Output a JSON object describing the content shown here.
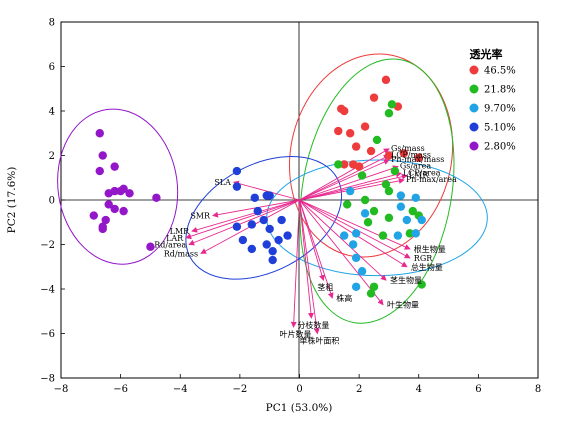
{
  "chart_data": {
    "type": "scatter",
    "subtype": "pca-biplot",
    "xlabel": "PC1 (53.0%)",
    "ylabel": "PC2 (17.6%)",
    "xlim": [
      -8,
      8
    ],
    "ylim": [
      -8,
      8
    ],
    "xticks": [
      "−8",
      "−6",
      "−4",
      "−2",
      "0",
      "2",
      "4",
      "6",
      "8"
    ],
    "yticks": [
      "−8",
      "−6",
      "−4",
      "−2",
      "0",
      "2",
      "4",
      "6",
      "8"
    ],
    "grid": false,
    "zero_lines": true,
    "legend": {
      "title": "透光率",
      "placement": "top-right"
    },
    "series": [
      {
        "name": "46.5%",
        "color": "#ee3b3b",
        "ellipse": {
          "cx": 2.4,
          "cy": 2.0,
          "rx": 2.7,
          "ry": 4.6,
          "angle": 12
        },
        "points": [
          [
            2.9,
            5.4
          ],
          [
            2.5,
            4.6
          ],
          [
            1.4,
            4.1
          ],
          [
            1.5,
            4.0
          ],
          [
            3.3,
            4.2
          ],
          [
            1.3,
            3.1
          ],
          [
            1.7,
            3.0
          ],
          [
            2.2,
            3.3
          ],
          [
            2.4,
            2.2
          ],
          [
            1.9,
            2.4
          ],
          [
            1.5,
            1.6
          ],
          [
            1.8,
            1.6
          ],
          [
            2.0,
            1.5
          ],
          [
            3.5,
            2.1
          ],
          [
            3.0,
            2.0
          ],
          [
            4.0,
            1.9
          ]
        ]
      },
      {
        "name": "21.8%",
        "color": "#22bb22",
        "ellipse": {
          "cx": 2.6,
          "cy": 0.4,
          "rx": 2.5,
          "ry": 6.0,
          "angle": 10
        },
        "points": [
          [
            3.1,
            4.3
          ],
          [
            3.0,
            3.9
          ],
          [
            2.6,
            2.7
          ],
          [
            1.3,
            1.6
          ],
          [
            2.1,
            1.1
          ],
          [
            3.2,
            1.3
          ],
          [
            2.9,
            0.7
          ],
          [
            3.0,
            0.4
          ],
          [
            2.2,
            0.0
          ],
          [
            1.6,
            -0.2
          ],
          [
            2.5,
            -0.5
          ],
          [
            3.0,
            -0.8
          ],
          [
            3.8,
            -0.5
          ],
          [
            4.0,
            -0.7
          ],
          [
            2.3,
            -1.0
          ],
          [
            2.8,
            -1.6
          ],
          [
            3.7,
            -1.5
          ],
          [
            2.5,
            -3.9
          ],
          [
            4.1,
            -3.8
          ],
          [
            2.4,
            -4.2
          ]
        ]
      },
      {
        "name": "9.70%",
        "color": "#20a4e6",
        "ellipse": {
          "cx": 2.6,
          "cy": -0.8,
          "rx": 3.7,
          "ry": 2.6,
          "angle": 0
        },
        "points": [
          [
            1.7,
            0.4
          ],
          [
            2.2,
            -0.6
          ],
          [
            3.4,
            0.2
          ],
          [
            3.9,
            0.1
          ],
          [
            3.4,
            -0.3
          ],
          [
            3.6,
            -0.9
          ],
          [
            4.1,
            -0.9
          ],
          [
            3.9,
            -1.5
          ],
          [
            1.5,
            -1.6
          ],
          [
            1.9,
            -1.5
          ],
          [
            3.3,
            -1.6
          ],
          [
            1.8,
            -2.0
          ],
          [
            1.9,
            -2.6
          ],
          [
            2.1,
            -3.2
          ],
          [
            1.9,
            -3.9
          ]
        ]
      },
      {
        "name": "5.10%",
        "color": "#1f3fd8",
        "ellipse": {
          "cx": -1.2,
          "cy": -0.8,
          "rx": 2.8,
          "ry": 2.4,
          "angle": -28
        },
        "points": [
          [
            -2.1,
            1.3
          ],
          [
            -2.1,
            0.6
          ],
          [
            -1.0,
            0.2
          ],
          [
            -1.5,
            0.1
          ],
          [
            -1.1,
            0.2
          ],
          [
            -1.4,
            -0.5
          ],
          [
            -1.2,
            -0.9
          ],
          [
            -1.6,
            -1.1
          ],
          [
            -0.6,
            -0.9
          ],
          [
            -1.0,
            -1.3
          ],
          [
            -0.4,
            -1.6
          ],
          [
            -0.7,
            -1.8
          ],
          [
            -1.1,
            -2.0
          ],
          [
            -1.6,
            -2.2
          ],
          [
            -1.9,
            -1.8
          ],
          [
            -2.1,
            -1.2
          ],
          [
            -0.9,
            -2.3
          ],
          [
            -0.9,
            -2.7
          ]
        ]
      },
      {
        "name": "2.80%",
        "color": "#9316c9",
        "ellipse": {
          "cx": -6.1,
          "cy": 0.6,
          "rx": 2.0,
          "ry": 3.5,
          "angle": -8
        },
        "points": [
          [
            -6.7,
            3.0
          ],
          [
            -6.6,
            2.0
          ],
          [
            -6.2,
            1.5
          ],
          [
            -6.7,
            1.3
          ],
          [
            -5.9,
            0.5
          ],
          [
            -6.0,
            0.4
          ],
          [
            -6.2,
            0.4
          ],
          [
            -6.4,
            0.3
          ],
          [
            -5.7,
            0.3
          ],
          [
            -4.8,
            0.1
          ],
          [
            -6.4,
            -0.2
          ],
          [
            -6.2,
            -0.4
          ],
          [
            -5.9,
            -0.5
          ],
          [
            -6.9,
            -0.7
          ],
          [
            -6.5,
            -0.9
          ],
          [
            -6.6,
            -1.2
          ],
          [
            -6.6,
            -1.3
          ],
          [
            -5.0,
            -2.1
          ]
        ]
      }
    ],
    "loadings": [
      {
        "label": "SLA",
        "x": -2.2,
        "y": 0.8
      },
      {
        "label": "SMR",
        "x": -2.9,
        "y": -0.7
      },
      {
        "label": "LMR",
        "x": -3.6,
        "y": -1.4
      },
      {
        "label": "LAR",
        "x": -3.8,
        "y": -1.7
      },
      {
        "label": "Rd/area",
        "x": -3.7,
        "y": -2.0
      },
      {
        "label": "Rd/mass",
        "x": -3.3,
        "y": -2.4
      },
      {
        "label": "Gs/mass",
        "x": 3.0,
        "y": 2.3
      },
      {
        "label": "LCP/mass",
        "x": 3.0,
        "y": 2.0
      },
      {
        "label": "Pn-max/mass",
        "x": 3.0,
        "y": 1.8
      },
      {
        "label": "Gs/area",
        "x": 3.3,
        "y": 1.5
      },
      {
        "label": "LCP/area",
        "x": 3.4,
        "y": 1.2
      },
      {
        "label": "LMR",
        "x": 3.6,
        "y": 1.1
      },
      {
        "label": "Pn-max/area",
        "x": 3.5,
        "y": 0.9
      },
      {
        "label": "根生物量",
        "x": 3.7,
        "y": -2.2
      },
      {
        "label": "RGR",
        "x": 3.7,
        "y": -2.6
      },
      {
        "label": "总生物量",
        "x": 3.6,
        "y": -3.0
      },
      {
        "label": "茎生物量",
        "x": 2.9,
        "y": -3.6
      },
      {
        "label": "叶生物量",
        "x": 2.8,
        "y": -4.7
      },
      {
        "label": "茎粗",
        "x": 0.8,
        "y": -3.6
      },
      {
        "label": "株高",
        "x": 1.1,
        "y": -4.4
      },
      {
        "label": "分枝数量",
        "x": 0.4,
        "y": -5.3
      },
      {
        "label": "叶片数量",
        "x": -0.2,
        "y": -5.7
      },
      {
        "label": "单株叶面积",
        "x": 0.6,
        "y": -6.0
      }
    ],
    "loading_color": "#e8288f"
  }
}
